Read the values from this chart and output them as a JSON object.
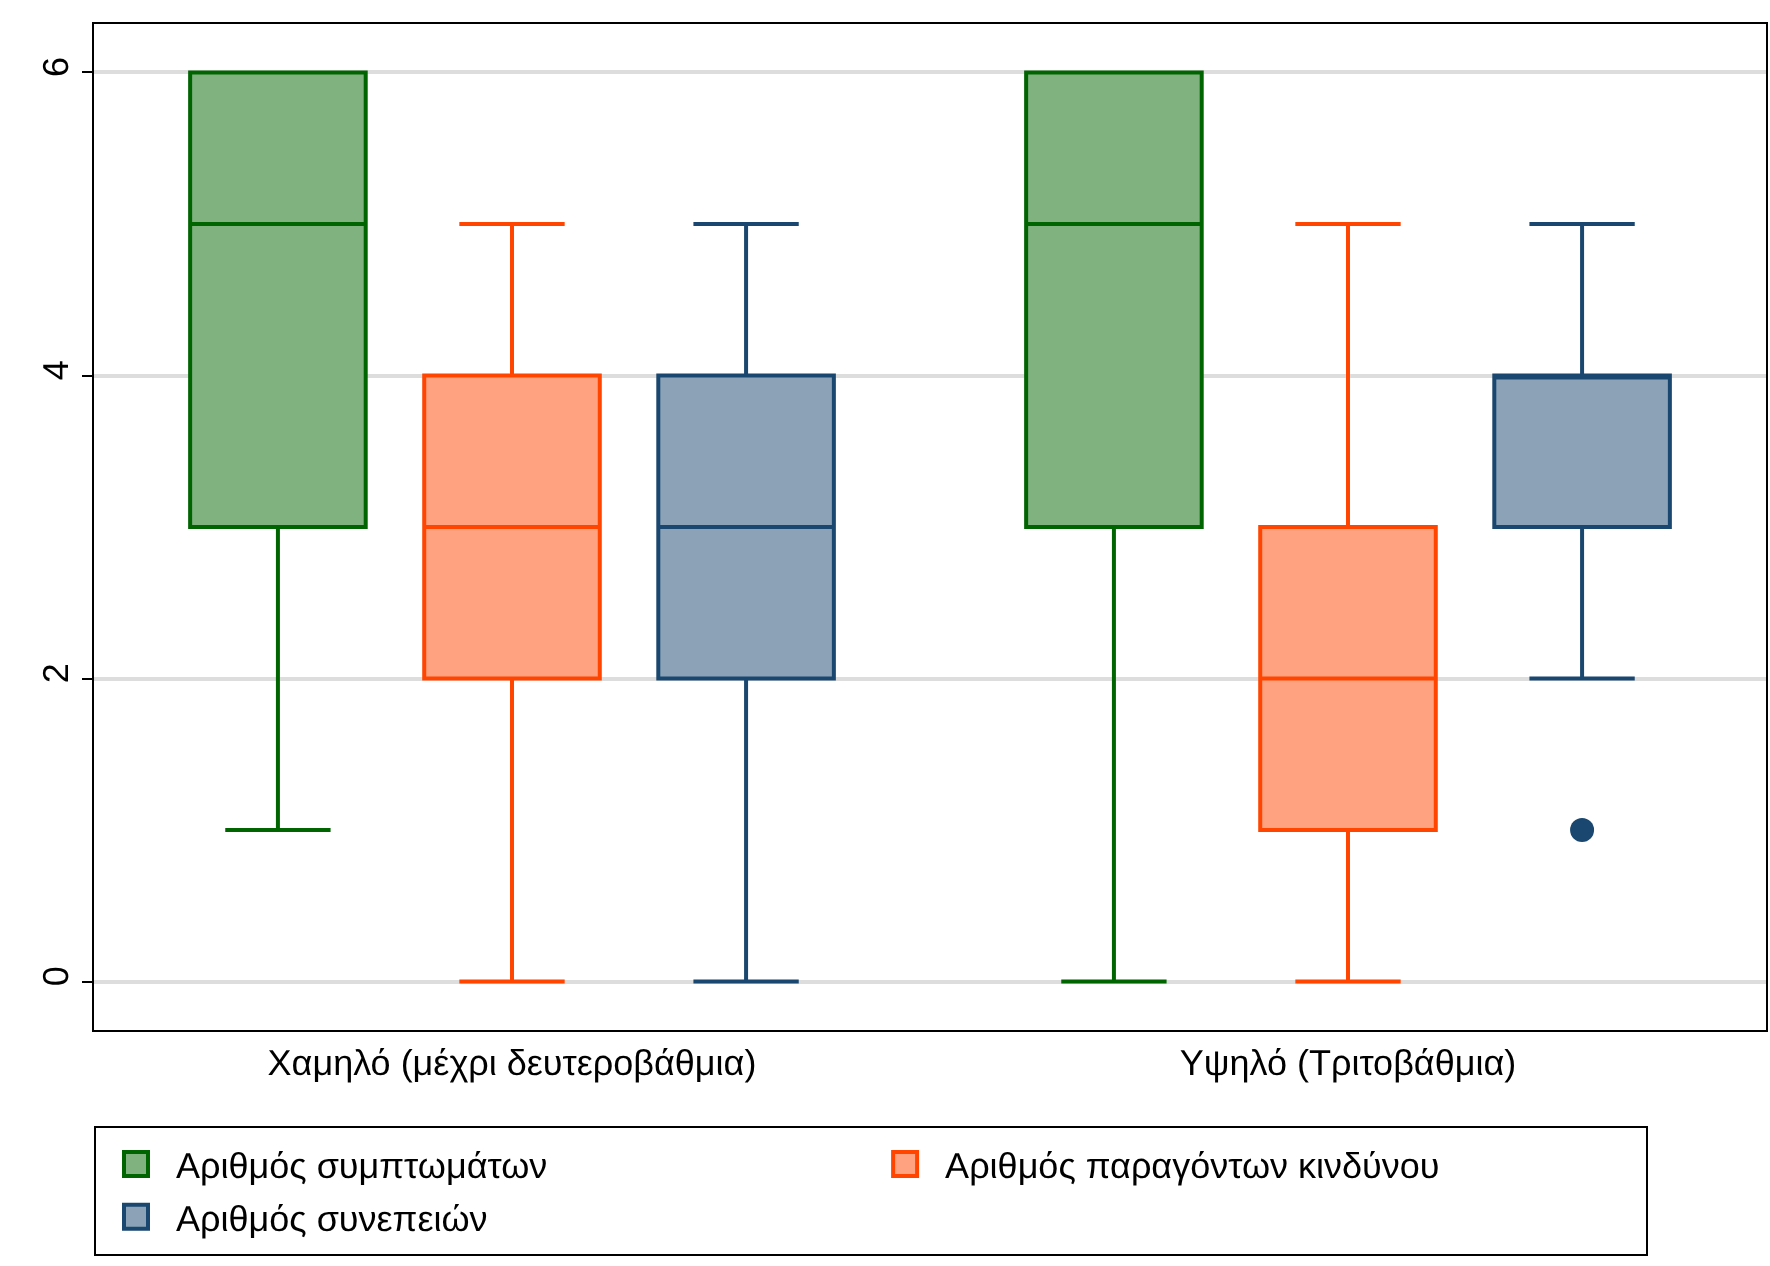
{
  "chart_data": {
    "type": "box",
    "categories": [
      "Χαμηλό (μέχρι δευτεροβάθμια)",
      "Υψηλό (Τριτοβάθμια)"
    ],
    "ylim": [
      -0.32,
      6.32
    ],
    "yticks": [
      0,
      2,
      4,
      6
    ],
    "grid": "y",
    "legend": "bottom",
    "series": [
      {
        "name": "Αριθμός συμπτωμάτων",
        "color": "#006400",
        "boxes": [
          {
            "low": 1,
            "q1": 3,
            "median": 5,
            "q3": 6,
            "high": 6
          },
          {
            "low": 0,
            "q1": 3,
            "median": 5,
            "q3": 6,
            "high": 6
          }
        ]
      },
      {
        "name": "Αριθμός παραγόντων κινδύνου",
        "color": "#ff4500",
        "boxes": [
          {
            "low": 0,
            "q1": 2,
            "median": 3,
            "q3": 4,
            "high": 5
          },
          {
            "low": 0,
            "q1": 1,
            "median": 2,
            "q3": 3,
            "high": 5
          }
        ]
      },
      {
        "name": "Αριθμός συνεπειών",
        "color": "#1a476f",
        "boxes": [
          {
            "low": 0,
            "q1": 2,
            "median": 3,
            "q3": 4,
            "high": 5
          },
          {
            "low": 2,
            "q1": 3,
            "median": 4,
            "q3": 4,
            "high": 5,
            "outliers": [
              1
            ]
          }
        ]
      }
    ]
  }
}
